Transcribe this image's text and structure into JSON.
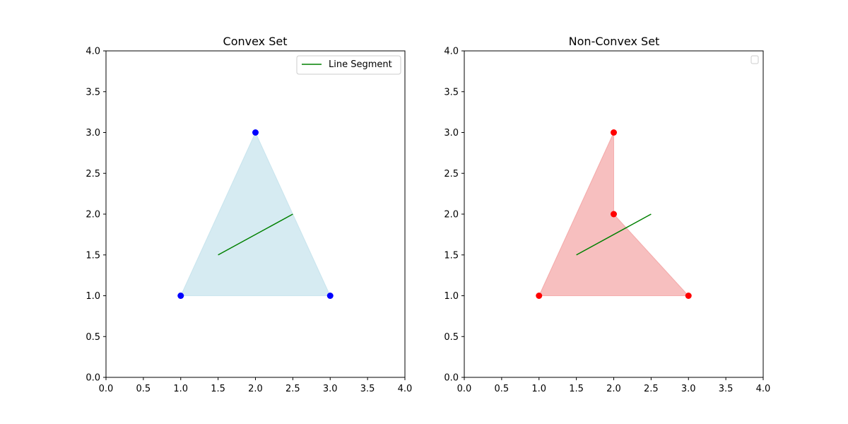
{
  "chart_data": [
    {
      "type": "scatter",
      "title": "Convex Set",
      "xlabel": "",
      "ylabel": "",
      "xlim": [
        0,
        4
      ],
      "ylim": [
        0,
        4
      ],
      "xticks": [
        "0.0",
        "0.5",
        "1.0",
        "1.5",
        "2.0",
        "2.5",
        "3.0",
        "3.5",
        "4.0"
      ],
      "yticks": [
        "0.0",
        "0.5",
        "1.0",
        "1.5",
        "2.0",
        "2.5",
        "3.0",
        "3.5",
        "4.0"
      ],
      "grid": false,
      "polygon": {
        "x": [
          1,
          3,
          2
        ],
        "y": [
          1,
          1,
          3
        ],
        "color": "#add8e6",
        "alpha": 0.5
      },
      "points": {
        "x": [
          1,
          3,
          2
        ],
        "y": [
          1,
          1,
          3
        ],
        "color": "#0000ff"
      },
      "segment": {
        "x": [
          1.5,
          2.5
        ],
        "y": [
          1.5,
          2.0
        ],
        "color": "#008000",
        "name": "Line Segment"
      },
      "legend": {
        "placement": "upper-right",
        "entries": [
          "Line Segment"
        ]
      }
    },
    {
      "type": "scatter",
      "title": "Non-Convex Set",
      "xlabel": "",
      "ylabel": "",
      "xlim": [
        0,
        4
      ],
      "ylim": [
        0,
        4
      ],
      "xticks": [
        "0.0",
        "0.5",
        "1.0",
        "1.5",
        "2.0",
        "2.5",
        "3.0",
        "3.5",
        "4.0"
      ],
      "yticks": [
        "0.0",
        "0.5",
        "1.0",
        "1.5",
        "2.0",
        "2.5",
        "3.0",
        "3.5",
        "4.0"
      ],
      "grid": false,
      "polygon": {
        "x": [
          1,
          3,
          2,
          2
        ],
        "y": [
          1,
          1,
          2,
          3
        ],
        "color": "#f08080",
        "alpha": 0.5
      },
      "points": {
        "x": [
          1,
          3,
          2,
          2
        ],
        "y": [
          1,
          1,
          2,
          3
        ],
        "color": "#ff0000"
      },
      "segment": {
        "x": [
          1.5,
          2.5
        ],
        "y": [
          1.5,
          2.0
        ],
        "color": "#008000"
      },
      "legend": {
        "placement": "upper-right",
        "entries": []
      }
    }
  ]
}
